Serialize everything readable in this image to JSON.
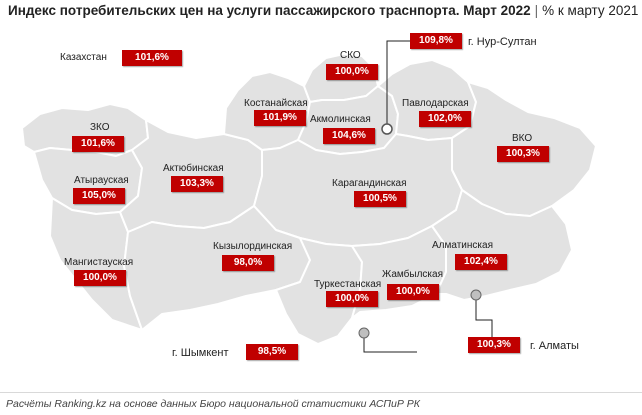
{
  "header": {
    "title": "Индекс потребительских цен на услуги пассажирского траснпорта. Март 2022",
    "separator": "|",
    "subtitle": "% к марту 2021"
  },
  "kazakhstan": {
    "label": "Казахстан",
    "value": "101,6%"
  },
  "regions": {
    "sko": {
      "label": "СКО",
      "value": "100,0%"
    },
    "kostanay": {
      "label": "Костанайская",
      "value": "101,9%"
    },
    "akmola": {
      "label": "Акмолинская",
      "value": "104,6%"
    },
    "pavlodar": {
      "label": "Павлодарская",
      "value": "102,0%"
    },
    "zko": {
      "label": "ЗКО",
      "value": "101,6%"
    },
    "vko": {
      "label": "ВКО",
      "value": "100,3%"
    },
    "atyrau": {
      "label": "Атырауская",
      "value": "105,0%"
    },
    "aktobe": {
      "label": "Актюбинская",
      "value": "103,3%"
    },
    "karaganda": {
      "label": "Карагандинская",
      "value": "100,5%"
    },
    "kyzylorda": {
      "label": "Кызылординская",
      "value": "98,0%"
    },
    "almaty_region": {
      "label": "Алматинская",
      "value": "102,4%"
    },
    "mangistau": {
      "label": "Мангистауская",
      "value": "100,0%"
    },
    "turkestan": {
      "label": "Туркестанская",
      "value": "100,0%"
    },
    "zhambyl": {
      "label": "Жамбылская",
      "value": "100,0%"
    }
  },
  "cities": {
    "nursultan": {
      "label": "г. Нур-Султан",
      "value": "109,8%"
    },
    "almaty": {
      "label": "г. Алматы",
      "value": "100,3%"
    },
    "shymkent": {
      "label": "г. Шымкент",
      "value": "98,5%"
    }
  },
  "footer": {
    "source": "Расчёты Ranking.kz на основе данных Бюро национальной статистики АСПиР РК"
  },
  "colors": {
    "value_box": "#c00000",
    "map_fill": "#e2e2e2",
    "map_border": "#ffffff"
  }
}
